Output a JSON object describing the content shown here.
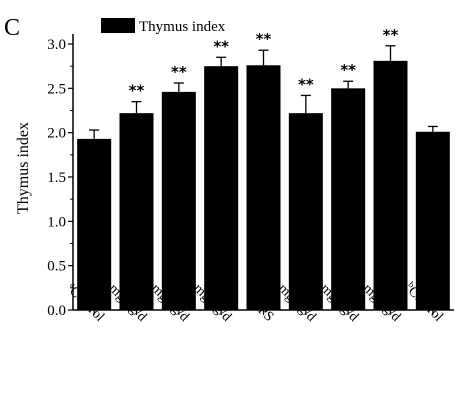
{
  "panel_label": "C",
  "chart_data": {
    "type": "bar",
    "categories": [
      {
        "sup": "a",
        "text": "Control"
      },
      {
        "sup": "a",
        "text": "50 mg/kg/d"
      },
      {
        "sup": "a",
        "text": "100 mg/kg/d"
      },
      {
        "sup": "a",
        "text": "200 mg/kg/d"
      },
      {
        "sup": "",
        "text": "APS"
      },
      {
        "sup": "b",
        "text": "50 mg/kg/d"
      },
      {
        "sup": "b",
        "text": "100 mg/kg/d"
      },
      {
        "sup": "b",
        "text": "200 mg/kg/d"
      },
      {
        "sup": "b",
        "text": "Control"
      }
    ],
    "series": [
      {
        "name": "Thymus index",
        "values": [
          1.93,
          2.22,
          2.46,
          2.75,
          2.76,
          2.22,
          2.5,
          2.81,
          2.01
        ],
        "errors": [
          0.1,
          0.13,
          0.1,
          0.1,
          0.17,
          0.2,
          0.08,
          0.17,
          0.06
        ],
        "color": "#000000"
      }
    ],
    "significance": [
      "",
      "**",
      "**",
      "**",
      "**",
      "**",
      "**",
      "**",
      ""
    ],
    "ylabel": "Thymus index",
    "xlabel": "",
    "ylim": [
      0,
      3.0
    ],
    "yticks": [
      "0.0",
      "0.5",
      "1.0",
      "1.5",
      "2.0",
      "2.5",
      "3.0"
    ],
    "legend_position": "top-left",
    "grid": false
  }
}
